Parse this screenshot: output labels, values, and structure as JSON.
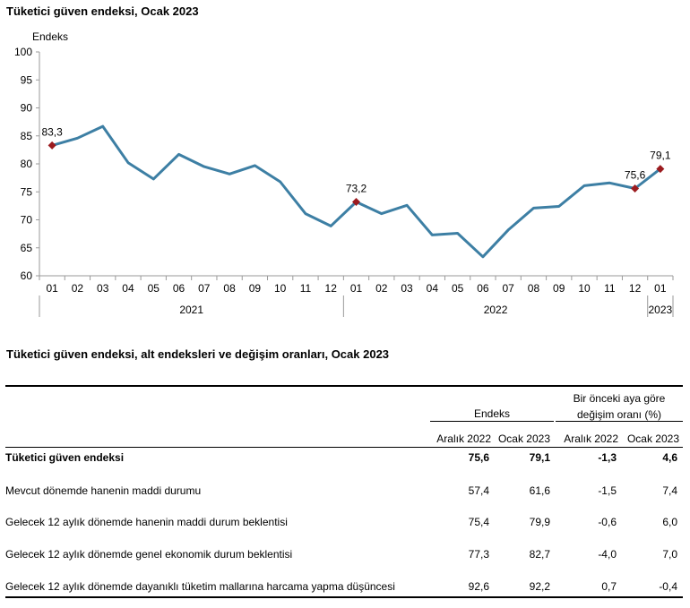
{
  "chart_title": "Tüketici güven endeksi, Ocak 2023",
  "chart_data": {
    "type": "line",
    "ylabel": "Endeks",
    "ylim": [
      60,
      100
    ],
    "yticks": [
      60,
      65,
      70,
      75,
      80,
      85,
      90,
      95,
      100
    ],
    "categories": [
      "01",
      "02",
      "03",
      "04",
      "05",
      "06",
      "07",
      "08",
      "09",
      "10",
      "11",
      "12",
      "01",
      "02",
      "03",
      "04",
      "05",
      "06",
      "07",
      "08",
      "09",
      "10",
      "11",
      "12",
      "01"
    ],
    "years": [
      {
        "label": "2021",
        "start": 0,
        "end": 11
      },
      {
        "label": "2022",
        "start": 12,
        "end": 23
      },
      {
        "label": "2023",
        "start": 24,
        "end": 24
      }
    ],
    "series": [
      {
        "values": [
          83.3,
          84.6,
          86.7,
          80.2,
          77.3,
          81.7,
          79.5,
          78.2,
          79.7,
          76.8,
          71.1,
          68.9,
          73.2,
          71.1,
          72.6,
          67.3,
          67.6,
          63.4,
          68.2,
          72.1,
          72.4,
          76.1,
          76.6,
          75.6,
          79.1
        ]
      }
    ],
    "highlighted": [
      {
        "index": 0,
        "label": "83,3"
      },
      {
        "index": 12,
        "label": "73,2"
      },
      {
        "index": 23,
        "label": "75,6"
      },
      {
        "index": 24,
        "label": "79,1"
      }
    ],
    "colors": {
      "line": "#3d7fa4",
      "marker": "#9b1b1f",
      "axis": "#9a9a9a"
    }
  },
  "table": {
    "title": "Tüketici güven endeksi, alt endeksleri ve değişim oranları, Ocak 2023",
    "group_endeks": "Endeks",
    "group_change_line1": "Bir önceki aya göre",
    "group_change_line2": "değişim oranı (%)",
    "columns": [
      "Aralık 2022",
      "Ocak 2023",
      "Aralık 2022",
      "Ocak 2023"
    ],
    "rows": [
      {
        "label": "Tüketici güven endeksi",
        "values": [
          "75,6",
          "79,1",
          "-1,3",
          "4,6"
        ]
      },
      {
        "label": "Mevcut dönemde hanenin maddi durumu",
        "values": [
          "57,4",
          "61,6",
          "-1,5",
          "7,4"
        ]
      },
      {
        "label": "Gelecek 12 aylık dönemde hanenin maddi durum beklentisi",
        "values": [
          "75,4",
          "79,9",
          "-0,6",
          "6,0"
        ]
      },
      {
        "label": "Gelecek 12 aylık dönemde genel ekonomik durum beklentisi",
        "values": [
          "77,3",
          "82,7",
          "-4,0",
          "7,0"
        ]
      },
      {
        "label": "Gelecek 12 aylık dönemde dayanıklı tüketim mallarına harcama yapma düşüncesi",
        "values": [
          "92,6",
          "92,2",
          "0,7",
          "-0,4"
        ]
      }
    ]
  }
}
